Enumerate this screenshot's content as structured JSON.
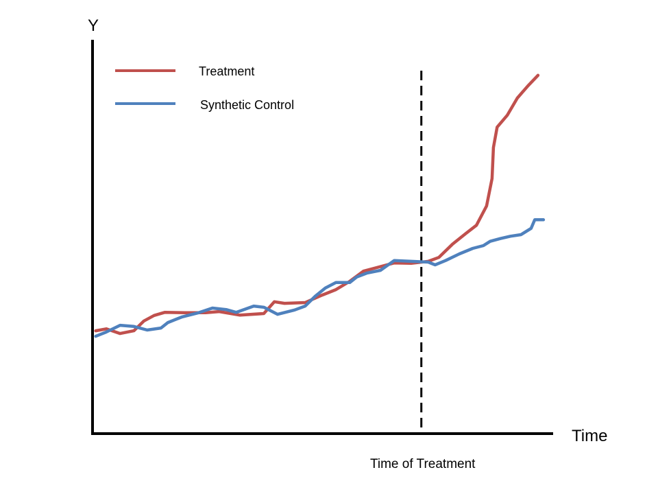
{
  "chart_data": {
    "type": "line",
    "title": "",
    "xlabel": "Time",
    "ylabel": "Y",
    "xlim": [
      0,
      100
    ],
    "ylim": [
      0,
      100
    ],
    "grid": false,
    "ticks": false,
    "legend_position": "top-left",
    "annotation": {
      "label": "Time of Treatment",
      "x": 71.6,
      "style": "dashed-vertical-line",
      "color": "#000000"
    },
    "series": [
      {
        "name": "Treatment",
        "color": "#c0504d",
        "x": [
          0.7,
          3.0,
          6.0,
          9.0,
          11.2,
          13.4,
          15.7,
          20.1,
          24.6,
          27.6,
          32.1,
          37.3,
          39.6,
          41.8,
          46.3,
          50.0,
          53.0,
          56.0,
          59.0,
          61.9,
          65.7,
          69.4,
          73.1,
          75.4,
          78.4,
          81.3,
          83.6,
          85.8,
          87.0,
          87.3,
          88.1,
          90.3,
          92.5,
          94.8,
          97.0
        ],
        "y": [
          26.2,
          26.7,
          25.5,
          26.2,
          28.7,
          30.1,
          30.9,
          30.8,
          30.8,
          31.1,
          30.2,
          30.6,
          33.6,
          33.2,
          33.4,
          35.3,
          36.7,
          38.8,
          41.4,
          42.3,
          43.5,
          43.4,
          43.9,
          44.9,
          48.3,
          51.0,
          53.1,
          58.0,
          65.0,
          72.9,
          78.1,
          81.1,
          85.5,
          88.6,
          91.3
        ]
      },
      {
        "name": "Synthetic Control",
        "color": "#4f81bd",
        "x": [
          0.7,
          3.0,
          6.0,
          9.0,
          11.9,
          14.9,
          16.4,
          19.4,
          23.1,
          26.1,
          29.1,
          31.3,
          35.1,
          37.3,
          40.3,
          44.0,
          46.3,
          48.5,
          50.7,
          53.0,
          56.0,
          57.5,
          59.7,
          62.7,
          65.7,
          69.4,
          73.1,
          74.6,
          76.9,
          79.9,
          82.8,
          85.1,
          86.6,
          88.8,
          91.0,
          93.3,
          95.5,
          96.3,
          98.2
        ],
        "y": [
          24.8,
          25.9,
          27.6,
          27.3,
          26.4,
          26.9,
          28.3,
          29.7,
          30.8,
          32.0,
          31.6,
          30.9,
          32.5,
          32.2,
          30.4,
          31.5,
          32.5,
          35.0,
          37.1,
          38.5,
          38.5,
          39.9,
          40.9,
          41.6,
          44.1,
          43.9,
          43.7,
          43.0,
          44.1,
          45.8,
          47.2,
          47.9,
          49.0,
          49.7,
          50.3,
          50.7,
          52.3,
          54.5,
          54.5
        ]
      }
    ]
  }
}
